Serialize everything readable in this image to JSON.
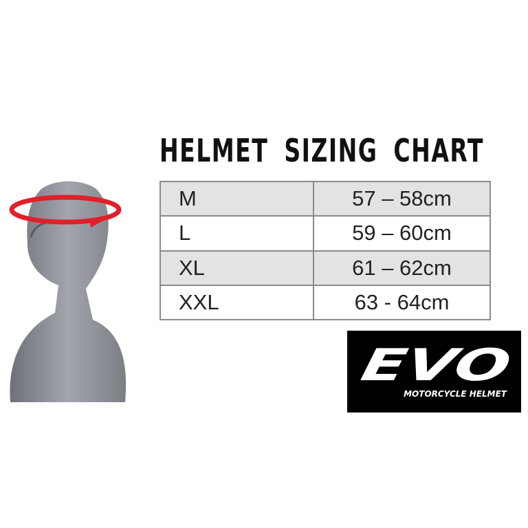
{
  "title": "HELMET SIZING CHART",
  "rows": [
    {
      "size": "M",
      "range": "57 – 58cm"
    },
    {
      "size": "L",
      "range": "59 – 60cm"
    },
    {
      "size": "XL",
      "range": "61 – 62cm"
    },
    {
      "size": "XXL",
      "range": "63 - 64cm"
    }
  ],
  "logo": {
    "brand": "EVO",
    "tagline": "MOTORCYCLE HELMET"
  },
  "colors": {
    "arrow": "#e0202a",
    "mannequin": "#8e9097",
    "row_gray": "#e3e3e3"
  }
}
